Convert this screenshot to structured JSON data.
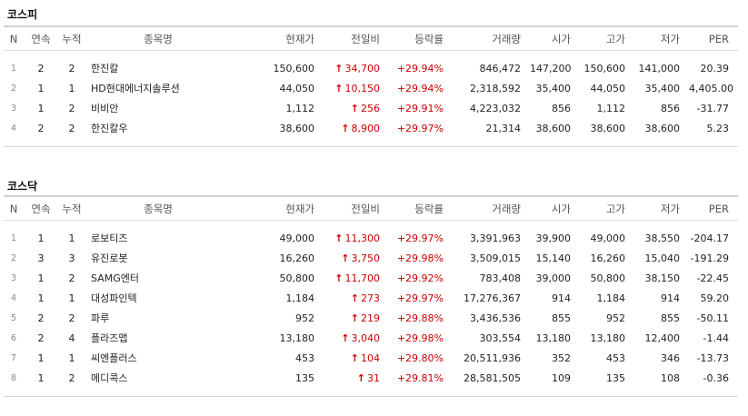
{
  "kospi": {
    "title": "코스피",
    "headers": [
      "N",
      "연속",
      "누적",
      "종목명",
      "현재가",
      "전일비",
      "등락률",
      "거래량",
      "시가",
      "고가",
      "저가",
      "PER"
    ],
    "rows": [
      {
        "n": "1",
        "streak": "2",
        "cum": "2",
        "name": "한진칼",
        "price": "150,600",
        "diff": "34,700",
        "rate": "+29.94%",
        "volume": "846,472",
        "open": "147,200",
        "high": "150,600",
        "low": "141,000",
        "per": "20.39"
      },
      {
        "n": "2",
        "streak": "1",
        "cum": "1",
        "name": "HD현대에너지솔루션",
        "price": "44,050",
        "diff": "10,150",
        "rate": "+29.94%",
        "volume": "2,318,592",
        "open": "35,400",
        "high": "44,050",
        "low": "35,400",
        "per": "4,405.00"
      },
      {
        "n": "3",
        "streak": "1",
        "cum": "2",
        "name": "비비안",
        "price": "1,112",
        "diff": "256",
        "rate": "+29.91%",
        "volume": "4,223,032",
        "open": "856",
        "high": "1,112",
        "low": "856",
        "per": "-31.77"
      },
      {
        "n": "4",
        "streak": "2",
        "cum": "2",
        "name": "한진칼우",
        "price": "38,600",
        "diff": "8,900",
        "rate": "+29.97%",
        "volume": "21,314",
        "open": "38,600",
        "high": "38,600",
        "low": "38,600",
        "per": "5.23"
      }
    ]
  },
  "kosdaq": {
    "title": "코스닥",
    "headers": [
      "N",
      "연속",
      "누적",
      "종목명",
      "현재가",
      "전일비",
      "등락률",
      "거래량",
      "시가",
      "고가",
      "저가",
      "PER"
    ],
    "rows": [
      {
        "n": "1",
        "streak": "1",
        "cum": "1",
        "name": "로보티즈",
        "price": "49,000",
        "diff": "11,300",
        "rate": "+29.97%",
        "volume": "3,391,963",
        "open": "39,900",
        "high": "49,000",
        "low": "38,550",
        "per": "-204.17"
      },
      {
        "n": "2",
        "streak": "3",
        "cum": "3",
        "name": "유진로봇",
        "price": "16,260",
        "diff": "3,750",
        "rate": "+29.98%",
        "volume": "3,509,015",
        "open": "15,140",
        "high": "16,260",
        "low": "15,040",
        "per": "-191.29"
      },
      {
        "n": "3",
        "streak": "1",
        "cum": "2",
        "name": "SAMG엔터",
        "price": "50,800",
        "diff": "11,700",
        "rate": "+29.92%",
        "volume": "783,408",
        "open": "39,000",
        "high": "50,800",
        "low": "38,150",
        "per": "-22.45"
      },
      {
        "n": "4",
        "streak": "1",
        "cum": "1",
        "name": "대성파인텍",
        "price": "1,184",
        "diff": "273",
        "rate": "+29.97%",
        "volume": "17,276,367",
        "open": "914",
        "high": "1,184",
        "low": "914",
        "per": "59.20"
      },
      {
        "n": "5",
        "streak": "2",
        "cum": "2",
        "name": "파루",
        "price": "952",
        "diff": "219",
        "rate": "+29.88%",
        "volume": "3,436,536",
        "open": "855",
        "high": "952",
        "low": "855",
        "per": "-50.11"
      },
      {
        "n": "6",
        "streak": "2",
        "cum": "4",
        "name": "플라즈맵",
        "price": "13,180",
        "diff": "3,040",
        "rate": "+29.98%",
        "volume": "303,554",
        "open": "13,180",
        "high": "13,180",
        "low": "12,400",
        "per": "-1.44"
      },
      {
        "n": "7",
        "streak": "1",
        "cum": "1",
        "name": "씨엔플러스",
        "price": "453",
        "diff": "104",
        "rate": "+29.80%",
        "volume": "20,511,936",
        "open": "352",
        "high": "453",
        "low": "346",
        "per": "-13.73"
      },
      {
        "n": "8",
        "streak": "1",
        "cum": "2",
        "name": "메디콕스",
        "price": "135",
        "diff": "31",
        "rate": "+29.81%",
        "volume": "28,581,505",
        "open": "109",
        "high": "135",
        "low": "108",
        "per": "-0.36"
      }
    ]
  },
  "colors": {
    "up": "#cc0000",
    "rule": "#d0d0d0"
  },
  "icons": {
    "diff_direction": "up-arrow-icon"
  }
}
